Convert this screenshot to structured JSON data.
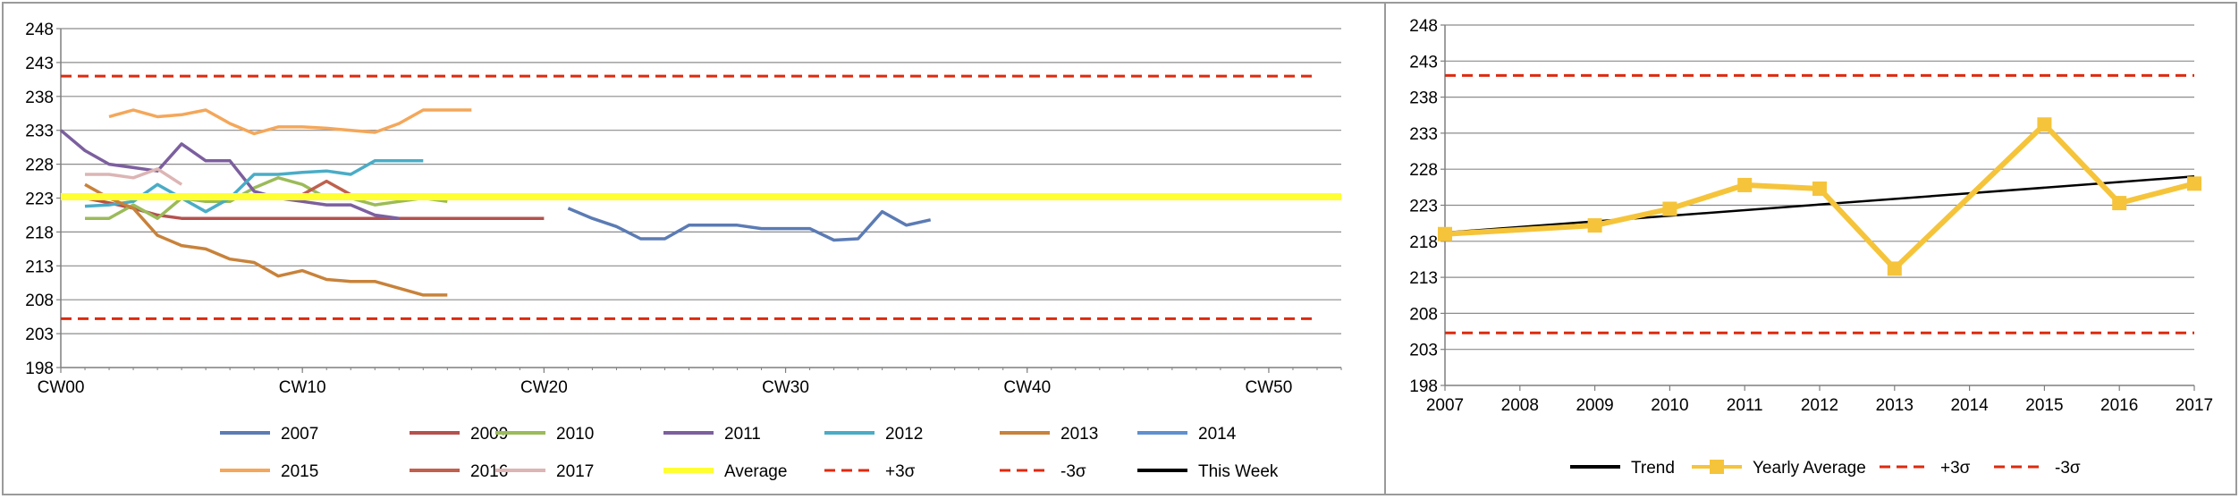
{
  "colors": {
    "2007": "#5b7bb4",
    "2009": "#b5514e",
    "2010": "#9bbb59",
    "2011": "#7c5f9f",
    "2012": "#4aacc6",
    "2013": "#c8823a",
    "2014": "#5f8fd0",
    "2015": "#f4a75a",
    "2016": "#c0604d",
    "2017": "#dcb5b4",
    "Average": "#ffff33",
    "+3σ": "#dd2a0e",
    "-3σ": "#dd2a0e",
    "This Week": "#000000",
    "Trend": "#000000",
    "Yearly Average": "#f5c43a"
  },
  "chart_data": [
    {
      "type": "line",
      "x_ticks": [
        "CW00",
        "CW10",
        "CW20",
        "CW30",
        "CW40",
        "CW50"
      ],
      "x_range": [
        0,
        53
      ],
      "ylim": [
        198,
        248
      ],
      "y_ticks": [
        198,
        203,
        208,
        213,
        218,
        223,
        228,
        233,
        238,
        243,
        248
      ],
      "grid": true,
      "legend_position": "bottom",
      "series": [
        {
          "name": "2007",
          "style": "solid",
          "points": [
            [
              21,
              221.5
            ],
            [
              22,
              220
            ],
            [
              23,
              218.8
            ],
            [
              24,
              217
            ],
            [
              25,
              217
            ],
            [
              26,
              219
            ],
            [
              27,
              219
            ],
            [
              28,
              219
            ],
            [
              29,
              218.5
            ],
            [
              30,
              218.5
            ],
            [
              31,
              218.5
            ],
            [
              32,
              216.8
            ],
            [
              33,
              217
            ],
            [
              34,
              221
            ],
            [
              35,
              219
            ],
            [
              36,
              219.8
            ]
          ]
        },
        {
          "name": "2009",
          "style": "solid",
          "points": [
            [
              1,
              223
            ],
            [
              2,
              222.3
            ],
            [
              3,
              221.5
            ],
            [
              4,
              220.5
            ],
            [
              5,
              220
            ],
            [
              6,
              220
            ],
            [
              7,
              220
            ],
            [
              8,
              220
            ],
            [
              9,
              220
            ],
            [
              10,
              220
            ],
            [
              11,
              220
            ],
            [
              12,
              220
            ],
            [
              13,
              220
            ],
            [
              14,
              220
            ],
            [
              15,
              220
            ],
            [
              16,
              220
            ],
            [
              17,
              220
            ],
            [
              18,
              220
            ],
            [
              19,
              220
            ],
            [
              20,
              220
            ]
          ]
        },
        {
          "name": "2010",
          "style": "solid",
          "points": [
            [
              1,
              220
            ],
            [
              2,
              220
            ],
            [
              3,
              222
            ],
            [
              4,
              220
            ],
            [
              5,
              223
            ],
            [
              6,
              222.5
            ],
            [
              7,
              222.5
            ],
            [
              8,
              224.5
            ],
            [
              9,
              226
            ],
            [
              10,
              225
            ],
            [
              11,
              223
            ],
            [
              12,
              223
            ],
            [
              13,
              222
            ],
            [
              14,
              222.5
            ],
            [
              15,
              223
            ],
            [
              16,
              222.5
            ]
          ]
        },
        {
          "name": "2011",
          "style": "solid",
          "points": [
            [
              0,
              233
            ],
            [
              1,
              230
            ],
            [
              2,
              228
            ],
            [
              3,
              227.5
            ],
            [
              4,
              227
            ],
            [
              5,
              231
            ],
            [
              6,
              228.5
            ],
            [
              7,
              228.5
            ],
            [
              8,
              224
            ],
            [
              9,
              223
            ],
            [
              10,
              222.5
            ],
            [
              11,
              222
            ],
            [
              12,
              222
            ],
            [
              13,
              220.5
            ],
            [
              14,
              220
            ]
          ]
        },
        {
          "name": "2012",
          "style": "solid",
          "points": [
            [
              1,
              221.8
            ],
            [
              2,
              222
            ],
            [
              3,
              222.5
            ],
            [
              4,
              225
            ],
            [
              5,
              223
            ],
            [
              6,
              221
            ],
            [
              7,
              223
            ],
            [
              8,
              226.5
            ],
            [
              9,
              226.5
            ],
            [
              10,
              226.8
            ],
            [
              11,
              227
            ],
            [
              12,
              226.5
            ],
            [
              13,
              228.5
            ],
            [
              14,
              228.5
            ],
            [
              15,
              228.5
            ]
          ]
        },
        {
          "name": "2013",
          "style": "solid",
          "points": [
            [
              1,
              225
            ],
            [
              2,
              223
            ],
            [
              3,
              221.5
            ],
            [
              4,
              217.5
            ],
            [
              5,
              216
            ],
            [
              6,
              215.5
            ],
            [
              7,
              214
            ],
            [
              8,
              213.5
            ],
            [
              9,
              211.5
            ],
            [
              10,
              212.3
            ],
            [
              11,
              211
            ],
            [
              12,
              210.7
            ],
            [
              13,
              210.7
            ],
            [
              14,
              209.7
            ],
            [
              15,
              208.7
            ],
            [
              16,
              208.7
            ]
          ]
        },
        {
          "name": "2014",
          "style": "solid",
          "points": []
        },
        {
          "name": "2015",
          "style": "solid",
          "points": [
            [
              2,
              235
            ],
            [
              3,
              236
            ],
            [
              4,
              235
            ],
            [
              5,
              235.3
            ],
            [
              6,
              236
            ],
            [
              7,
              234
            ],
            [
              8,
              232.5
            ],
            [
              9,
              233.5
            ],
            [
              10,
              233.5
            ],
            [
              11,
              233.3
            ],
            [
              12,
              233
            ],
            [
              13,
              232.7
            ],
            [
              14,
              234
            ],
            [
              15,
              236
            ],
            [
              16,
              236
            ],
            [
              17,
              236
            ]
          ]
        },
        {
          "name": "2016",
          "style": "solid",
          "points": [
            [
              10,
              223.5
            ],
            [
              11,
              225.5
            ],
            [
              12,
              223.5
            ],
            [
              13,
              223.5
            ],
            [
              14,
              223.5
            ],
            [
              15,
              223.5
            ],
            [
              16,
              223.5
            ],
            [
              17,
              223.5
            ],
            [
              18,
              223.5
            ],
            [
              19,
              223.5
            ],
            [
              20,
              223.5
            ],
            [
              21,
              223.5
            ],
            [
              22,
              223.5
            ],
            [
              23,
              223.5
            ],
            [
              24,
              223.5
            ]
          ]
        },
        {
          "name": "2017",
          "style": "solid",
          "points": [
            [
              1,
              226.5
            ],
            [
              2,
              226.5
            ],
            [
              3,
              226
            ],
            [
              4,
              227.3
            ],
            [
              5,
              225
            ]
          ]
        },
        {
          "name": "Average",
          "style": "solid",
          "points": [
            [
              0,
              223.2
            ],
            [
              53,
              223.2
            ]
          ]
        },
        {
          "name": "+3σ",
          "style": "dashed",
          "points": [
            [
              0,
              241
            ],
            [
              52,
              241
            ]
          ]
        },
        {
          "name": "-3σ",
          "style": "dashed",
          "points": [
            [
              0,
              205.2
            ],
            [
              52,
              205.2
            ]
          ]
        },
        {
          "name": "This Week",
          "style": "solid",
          "points": []
        }
      ]
    },
    {
      "type": "line",
      "categories": [
        "2007",
        "2008",
        "2009",
        "2010",
        "2011",
        "2012",
        "2013",
        "2014",
        "2015",
        "2016",
        "2017"
      ],
      "ylim": [
        198,
        248
      ],
      "y_ticks": [
        198,
        203,
        208,
        213,
        218,
        223,
        228,
        233,
        238,
        243,
        248
      ],
      "grid": true,
      "legend_position": "bottom",
      "series": [
        {
          "name": "Trend",
          "style": "solid",
          "points": [
            [
              0,
              219.2
            ],
            [
              10,
              227
            ]
          ]
        },
        {
          "name": "Yearly Average",
          "style": "marker",
          "points": [
            [
              0,
              219
            ],
            [
              2,
              220.2
            ],
            [
              3,
              222.5
            ],
            [
              4,
              225.8
            ],
            [
              5,
              225.3
            ],
            [
              6,
              214.2
            ],
            [
              8,
              234.2
            ],
            [
              9,
              223.3
            ],
            [
              10,
              226
            ]
          ]
        },
        {
          "name": "+3σ",
          "style": "dashed",
          "points": [
            [
              0,
              241
            ],
            [
              10,
              241
            ]
          ]
        },
        {
          "name": "-3σ",
          "style": "dashed",
          "points": [
            [
              0,
              205.3
            ],
            [
              10,
              205.3
            ]
          ]
        }
      ]
    }
  ]
}
